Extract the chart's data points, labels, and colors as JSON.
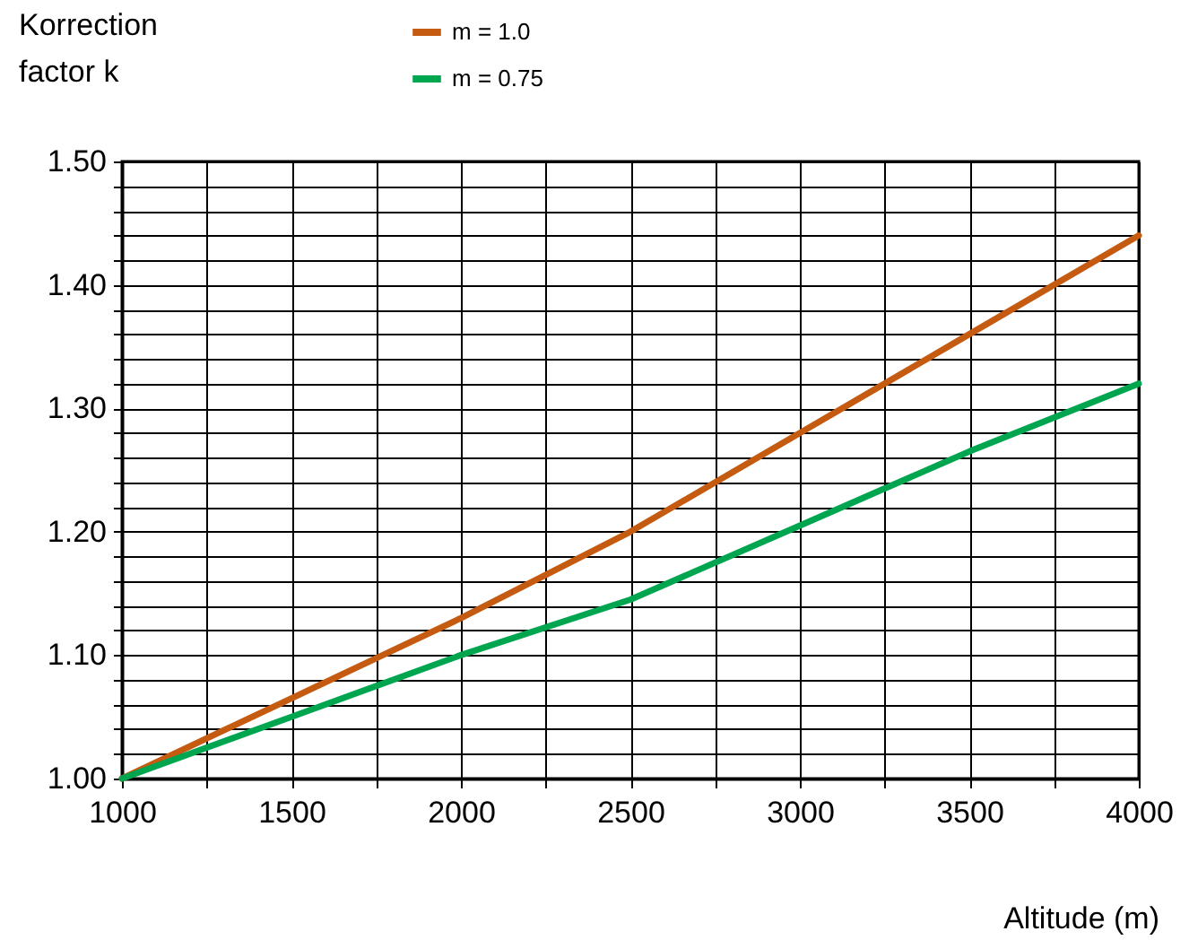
{
  "chart_data": {
    "type": "line",
    "ylabel": "Korrection\nfactor k",
    "xlabel": "Altitude (m)",
    "x": [
      1000,
      1500,
      2000,
      2500,
      3000,
      3500,
      4000
    ],
    "series": [
      {
        "name": "m = 1.0",
        "color": "#c55a11",
        "values": [
          1.0,
          1.065,
          1.13,
          1.2,
          1.28,
          1.36,
          1.44
        ]
      },
      {
        "name": "m = 0.75",
        "color": "#00a550",
        "values": [
          1.0,
          1.05,
          1.1,
          1.145,
          1.205,
          1.265,
          1.32
        ]
      }
    ],
    "xlim": [
      1000,
      4000
    ],
    "xticks": [
      1000,
      {
        "value": 1250,
        "label": null
      },
      1500,
      {
        "value": 1750,
        "label": null
      },
      2000,
      {
        "value": 2250,
        "label": null
      },
      2500,
      {
        "value": 2750,
        "label": null
      },
      3000,
      {
        "value": 3250,
        "label": null
      },
      3500,
      {
        "value": 3750,
        "label": null
      },
      4000
    ],
    "ylim": [
      1.0,
      1.5
    ],
    "yticks": [
      {
        "value": 1.0,
        "label": "1.00"
      },
      {
        "value": 1.02,
        "label": null
      },
      {
        "value": 1.04,
        "label": null
      },
      {
        "value": 1.06,
        "label": null
      },
      {
        "value": 1.08,
        "label": null
      },
      {
        "value": 1.1,
        "label": "1.10"
      },
      {
        "value": 1.12,
        "label": null
      },
      {
        "value": 1.14,
        "label": null
      },
      {
        "value": 1.16,
        "label": null
      },
      {
        "value": 1.18,
        "label": null
      },
      {
        "value": 1.2,
        "label": "1.20"
      },
      {
        "value": 1.22,
        "label": null
      },
      {
        "value": 1.24,
        "label": null
      },
      {
        "value": 1.26,
        "label": null
      },
      {
        "value": 1.28,
        "label": null
      },
      {
        "value": 1.3,
        "label": "1.30"
      },
      {
        "value": 1.32,
        "label": null
      },
      {
        "value": 1.34,
        "label": null
      },
      {
        "value": 1.36,
        "label": null
      },
      {
        "value": 1.38,
        "label": null
      },
      {
        "value": 1.4,
        "label": "1.40"
      },
      {
        "value": 1.42,
        "label": null
      },
      {
        "value": 1.44,
        "label": null
      },
      {
        "value": 1.46,
        "label": null
      },
      {
        "value": 1.48,
        "label": null
      },
      {
        "value": 1.5,
        "label": "1.50"
      }
    ],
    "grid": true,
    "legend": "top",
    "marker": "none",
    "line_style": "solid"
  }
}
